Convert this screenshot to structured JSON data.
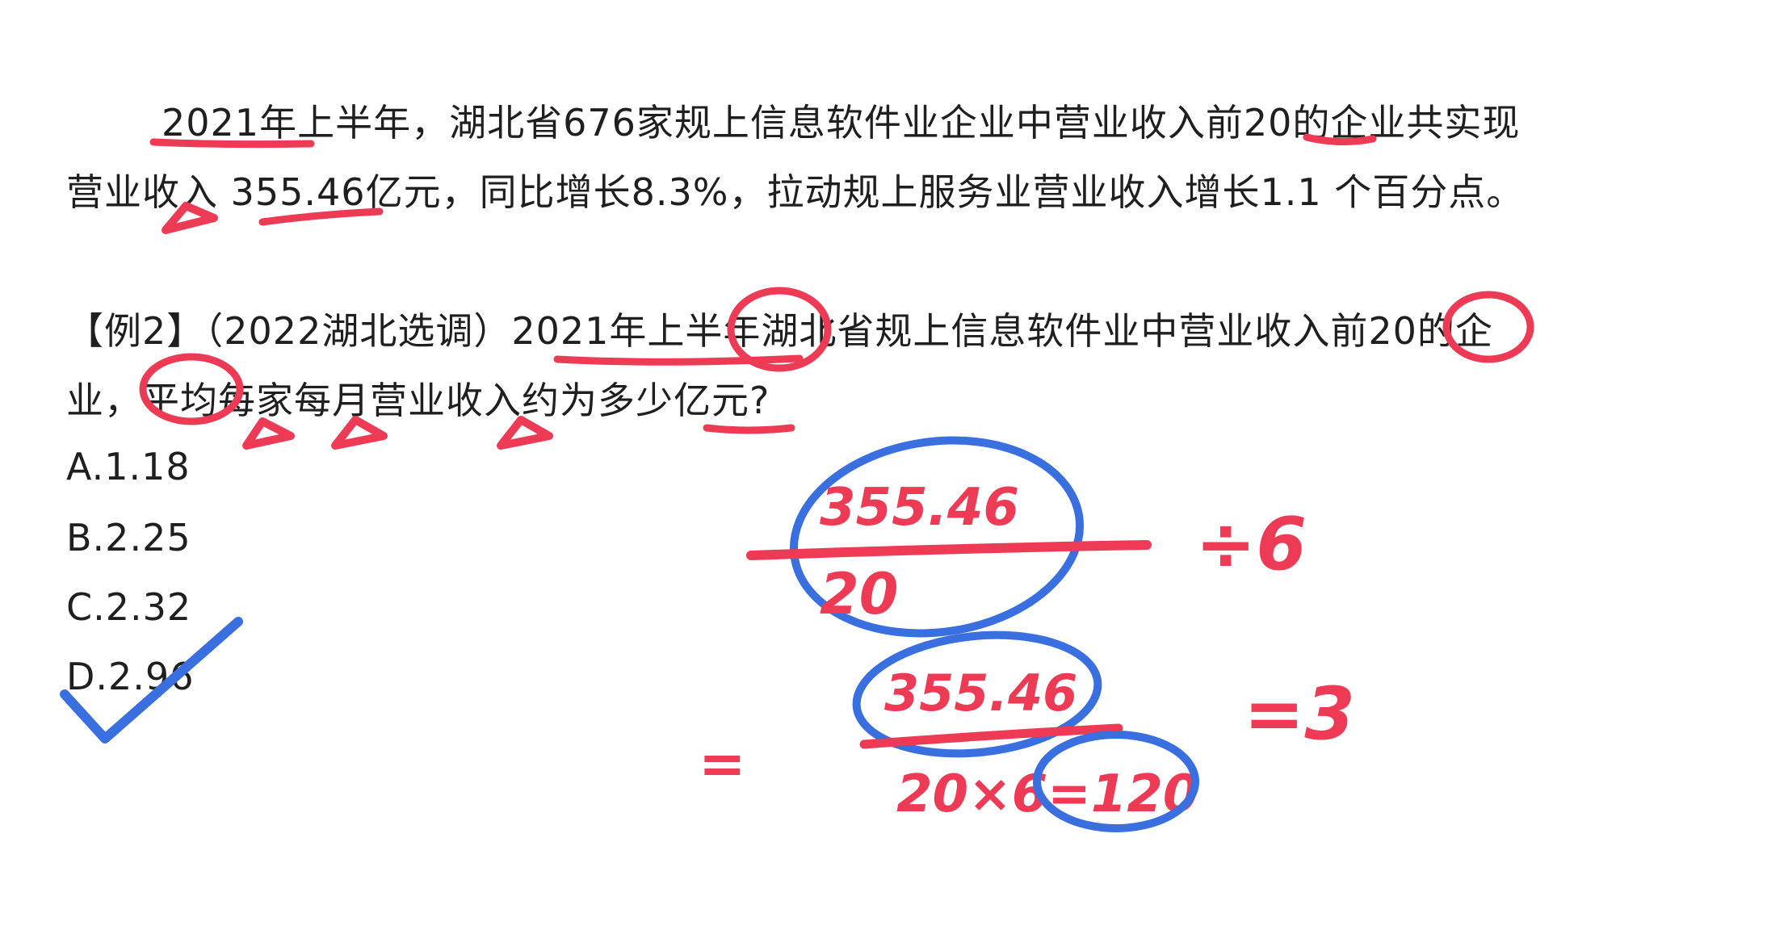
{
  "passage": {
    "line1": "2021年上半年，湖北省676家规上信息软件业企业中营业收入前20的企业共实现",
    "line2": "营业收入 355.46亿元，同比增长8.3%，拉动规上服务业营业收入增长1.1 个百分点。"
  },
  "question": {
    "line1": "【例2】（2022湖北选调）2021年上半年湖北省规上信息软件业中营业收入前20的企",
    "line2": "业，平均每家每月营业收入约为多少亿元?"
  },
  "options": [
    {
      "label": "A.1.18"
    },
    {
      "label": "B.2.25"
    },
    {
      "label": "C.2.32"
    },
    {
      "label": "D.2.96"
    }
  ],
  "annotations": {
    "fraction1_numerator": "355.46",
    "fraction1_denominator": "20",
    "divide_by": "÷6",
    "fraction2_numerator": "355.46",
    "fraction2_denominator": "20×6=120",
    "equals_left": "=",
    "result": "=3"
  },
  "colors": {
    "red_ink": "#ee3b55",
    "blue_ink": "#3a6fe0",
    "text": "#1f1f1f"
  }
}
